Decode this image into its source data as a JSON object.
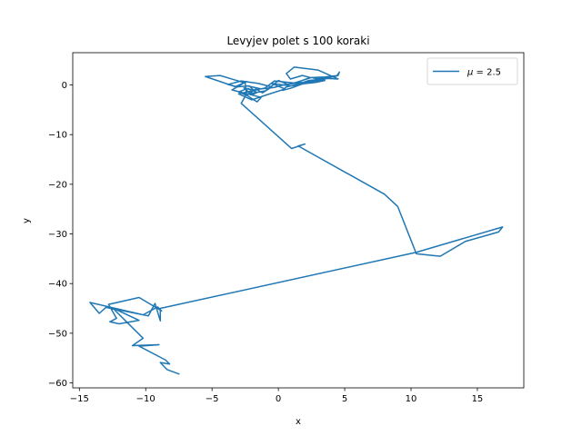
{
  "chart_data": {
    "type": "line",
    "title": "Levyjev polet s 100 koraki",
    "xlabel": "x",
    "ylabel": "y",
    "xlim": [
      -15.5,
      18.5
    ],
    "ylim": [
      -61,
      6.5
    ],
    "xticks": [
      -15,
      -10,
      -5,
      0,
      5,
      10,
      15
    ],
    "yticks": [
      0,
      -10,
      -20,
      -30,
      -40,
      -50,
      -60
    ],
    "grid": false,
    "legend": {
      "placement": "top-right",
      "symbol": "μ",
      "text": " = 2.5"
    },
    "series": [
      {
        "name": "μ = 2.5",
        "color": "#1f77b4",
        "x": [
          -2.2,
          -1.8,
          -2.6,
          -2.0,
          -1.6,
          -2.3,
          -3.0,
          -2.4,
          -1.7,
          -1.2,
          -0.5,
          -1.5,
          -2.8,
          -3.8,
          -3.2,
          -2.4,
          -3.5,
          -1.3,
          -1.6,
          -2.5,
          -1.0,
          -0.5,
          0.0,
          0.7,
          1.5,
          2.4,
          1.8,
          0.9,
          0.6,
          1.2,
          3.0,
          4.5,
          2.5,
          1.2,
          -0.3,
          -1.0,
          -3.0,
          -2.0,
          -1.0,
          0.5,
          -0.5,
          1.0,
          2.5,
          3.8,
          3.2,
          2.5,
          3.5,
          4.5,
          4.6,
          4.4,
          3.3,
          2.3,
          1.4,
          0.6,
          0.3,
          1.0,
          1.8,
          2.8,
          3.5,
          3.4,
          2.9,
          1.8,
          0.6,
          0.2,
          -0.3,
          -1.3,
          -2.3,
          -3.2,
          -5.5,
          -4.4,
          -2.5,
          -2.4,
          -2.8,
          1.0,
          2.0,
          1.5,
          8.0,
          9.0,
          10.4,
          12.2,
          14.1,
          16.6,
          16.9,
          10.4,
          -8.9,
          -8.9,
          -9.3,
          -9.8,
          -13.0,
          -13.5,
          -14.2,
          -10.2,
          -9.1,
          -8.8,
          -10.5,
          -12.8,
          -12.2,
          -12.7,
          -12.0,
          -10.5,
          -12.5,
          -10.2,
          -11.0,
          -9.0,
          -10.5,
          -8.5,
          -8.2,
          -8.9,
          -8.4,
          -7.5
        ],
        "y": [
          -0.2,
          -1.2,
          -0.6,
          -2.0,
          -1.5,
          -0.7,
          -1.4,
          -2.1,
          -0.8,
          -1.6,
          -0.4,
          0.3,
          0.8,
          0.1,
          -0.3,
          0.7,
          -1.0,
          -2.5,
          -3.4,
          -1.9,
          -1.2,
          -0.2,
          0.9,
          0.1,
          0.6,
          1.5,
          1.9,
          1.2,
          2.3,
          3.6,
          3.0,
          1.2,
          1.5,
          0.4,
          0.8,
          -0.6,
          -1.8,
          -3.0,
          -2.1,
          -0.8,
          0.3,
          -0.2,
          0.5,
          1.4,
          1.0,
          1.5,
          1.6,
          1.9,
          2.6,
          1.8,
          1.2,
          0.9,
          0.1,
          -0.4,
          -1.1,
          -0.6,
          0.2,
          0.5,
          0.9,
          1.1,
          0.8,
          0.5,
          0.1,
          -0.1,
          -0.5,
          -0.8,
          -0.2,
          -0.4,
          1.7,
          1.9,
          0.4,
          -1.8,
          -3.7,
          -12.8,
          -11.9,
          -12.3,
          -22.0,
          -24.5,
          -34.0,
          -34.5,
          -31.5,
          -29.6,
          -28.6,
          -33.7,
          -45.0,
          -47.5,
          -44.0,
          -46.5,
          -44.8,
          -46.0,
          -43.8,
          -46.3,
          -44.7,
          -45.5,
          -42.8,
          -44.2,
          -47.0,
          -47.7,
          -48.1,
          -47.4,
          -44.9,
          -51.0,
          -52.5,
          -52.3,
          -52.6,
          -55.4,
          -56.2,
          -55.9,
          -57.3,
          -58.2
        ]
      }
    ]
  }
}
